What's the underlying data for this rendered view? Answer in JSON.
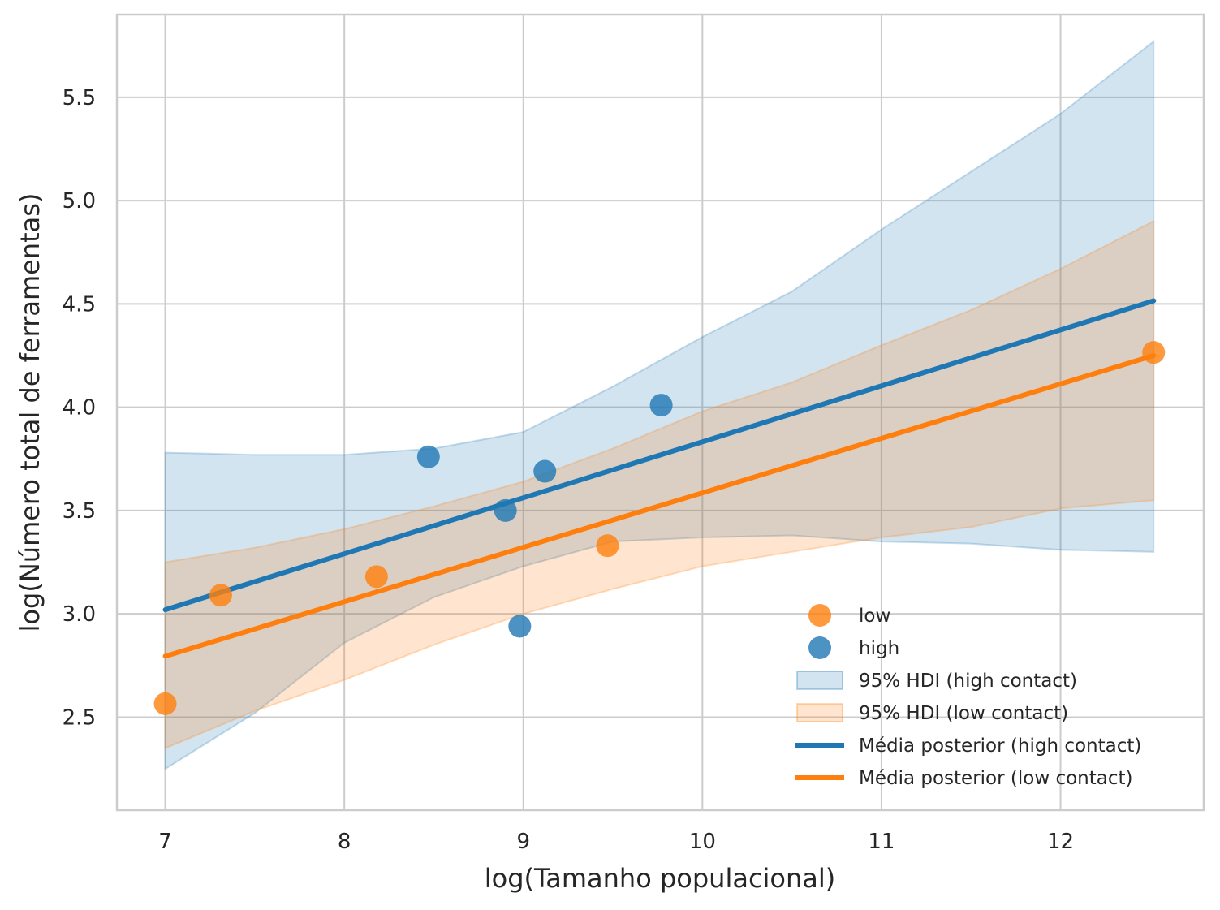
{
  "chart_data": {
    "type": "scatter",
    "title": "",
    "xlabel": "log(Tamanho populacional)",
    "ylabel": "log(Número total de ferramentas)",
    "xlim": [
      6.73,
      12.8
    ],
    "ylim": [
      2.05,
      5.9
    ],
    "xticks": [
      7,
      8,
      9,
      10,
      11,
      12
    ],
    "yticks": [
      2.5,
      3.0,
      3.5,
      4.0,
      4.5,
      5.0,
      5.5
    ],
    "xtick_labels": [
      "7",
      "8",
      "9",
      "10",
      "11",
      "12"
    ],
    "ytick_labels": [
      "2.5",
      "3.0",
      "3.5",
      "4.0",
      "4.5",
      "5.0",
      "5.5"
    ],
    "grid": true,
    "legend_position": "lower-right",
    "colors": {
      "low": "#ff7f0e",
      "high": "#1f77b4"
    },
    "scatter_series": [
      {
        "name": "low",
        "color": "#ff7f0e",
        "points": [
          {
            "x": 7.0,
            "y": 2.565
          },
          {
            "x": 7.31,
            "y": 3.09
          },
          {
            "x": 8.18,
            "y": 3.18
          },
          {
            "x": 9.47,
            "y": 3.33
          },
          {
            "x": 12.52,
            "y": 4.265
          }
        ]
      },
      {
        "name": "high",
        "color": "#1f77b4",
        "points": [
          {
            "x": 8.47,
            "y": 3.76
          },
          {
            "x": 8.9,
            "y": 3.5
          },
          {
            "x": 8.98,
            "y": 2.94
          },
          {
            "x": 9.12,
            "y": 3.69
          },
          {
            "x": 9.77,
            "y": 4.01
          }
        ]
      }
    ],
    "hdi_bands": [
      {
        "name": "95% HDI (high contact)",
        "color": "#1f77b4",
        "x": [
          7.0,
          7.5,
          8.0,
          8.5,
          9.0,
          9.5,
          10.0,
          10.5,
          11.0,
          11.5,
          12.0,
          12.52
        ],
        "lower": [
          2.25,
          2.52,
          2.86,
          3.08,
          3.23,
          3.35,
          3.37,
          3.38,
          3.35,
          3.34,
          3.31,
          3.3
        ],
        "upper": [
          3.78,
          3.77,
          3.77,
          3.8,
          3.88,
          4.1,
          4.34,
          4.56,
          4.86,
          5.14,
          5.42,
          5.77
        ]
      },
      {
        "name": "95% HDI (low contact)",
        "color": "#ff7f0e",
        "x": [
          7.0,
          7.5,
          8.0,
          8.5,
          9.0,
          9.5,
          10.0,
          10.5,
          11.0,
          11.5,
          12.0,
          12.52
        ],
        "lower": [
          2.35,
          2.53,
          2.68,
          2.85,
          3.0,
          3.12,
          3.23,
          3.3,
          3.37,
          3.42,
          3.51,
          3.55
        ],
        "upper": [
          3.25,
          3.32,
          3.41,
          3.52,
          3.64,
          3.8,
          3.98,
          4.12,
          4.3,
          4.47,
          4.67,
          4.9
        ]
      }
    ],
    "mean_lines": [
      {
        "name": "Média posterior (high contact)",
        "color": "#1f77b4",
        "x": [
          7.0,
          12.52
        ],
        "y": [
          3.02,
          4.515
        ]
      },
      {
        "name": "Média posterior (low contact)",
        "color": "#ff7f0e",
        "x": [
          7.0,
          12.52
        ],
        "y": [
          2.795,
          4.25
        ]
      }
    ],
    "legend": [
      {
        "label": "low",
        "kind": "marker",
        "color": "#ff7f0e"
      },
      {
        "label": "high",
        "kind": "marker",
        "color": "#1f77b4"
      },
      {
        "label": "95% HDI (high contact)",
        "kind": "patch",
        "color": "#1f77b4"
      },
      {
        "label": "95% HDI (low contact)",
        "kind": "patch",
        "color": "#ff7f0e"
      },
      {
        "label": "Média posterior (high contact)",
        "kind": "line",
        "color": "#1f77b4"
      },
      {
        "label": "Média posterior (low contact)",
        "kind": "line",
        "color": "#ff7f0e"
      }
    ]
  }
}
